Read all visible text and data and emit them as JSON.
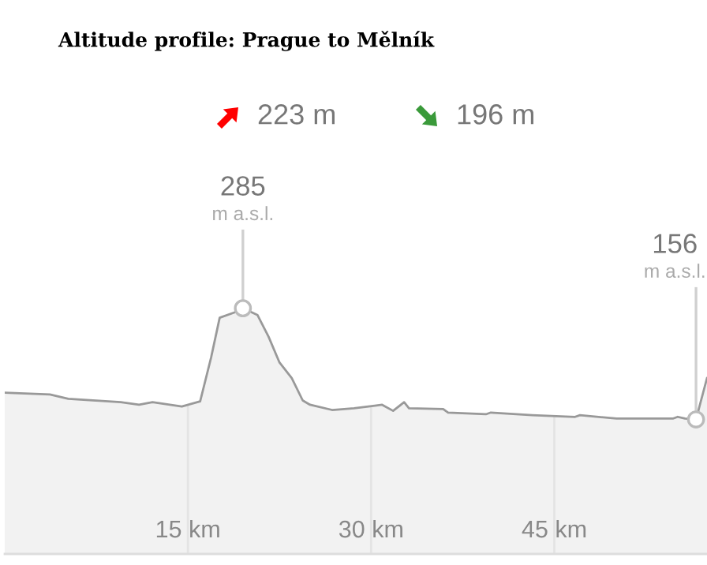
{
  "chart_data": {
    "type": "area",
    "title": "Altitude profile: Prague to Mělník",
    "annotations": [
      "223 m",
      "196 m",
      {
        "text": "m a.s.l.",
        "x": 19.5,
        "y": 285
      },
      {
        "text": "m a.s.l.",
        "x": 56.6,
        "y": 156
      }
    ],
    "x": [
      0,
      3.7,
      5.2,
      9.5,
      11.0,
      12.1,
      14.5,
      16.0,
      16.9,
      17.6,
      18.8,
      19.5,
      20.7,
      21.6,
      22.5,
      23.5,
      24.4,
      25.0,
      26.8,
      28.6,
      30.3,
      30.9,
      31.8,
      32.7,
      33.1,
      35.9,
      36.3,
      39.4,
      39.8,
      43.2,
      46.7,
      47.1,
      50.1,
      54.7,
      55.1,
      55.7,
      56.6,
      57.5
    ],
    "values": [
      187,
      185,
      180,
      176,
      173,
      176,
      171,
      177,
      228,
      274,
      280,
      285,
      277,
      252,
      222,
      204,
      178,
      173,
      167,
      169,
      172,
      173,
      166,
      176,
      169,
      168,
      164,
      162,
      164,
      161,
      159,
      161,
      157,
      157,
      159,
      157,
      156,
      204
    ],
    "value_labels": [
      null,
      null,
      null,
      null,
      null,
      null,
      null,
      null,
      null,
      null,
      null,
      "285",
      null,
      null,
      null,
      null,
      null,
      null,
      null,
      null,
      null,
      null,
      null,
      null,
      null,
      null,
      null,
      null,
      null,
      null,
      null,
      null,
      null,
      null,
      null,
      null,
      "156",
      null
    ],
    "color": "#999999",
    "xlim": [
      0,
      57.5
    ],
    "xticks": [
      {
        "value": 15,
        "label": "15 km"
      },
      {
        "value": 30,
        "label": "30 km"
      },
      {
        "value": 45,
        "label": "45 km"
      }
    ],
    "grid": "x",
    "tick_labels": "x"
  }
}
